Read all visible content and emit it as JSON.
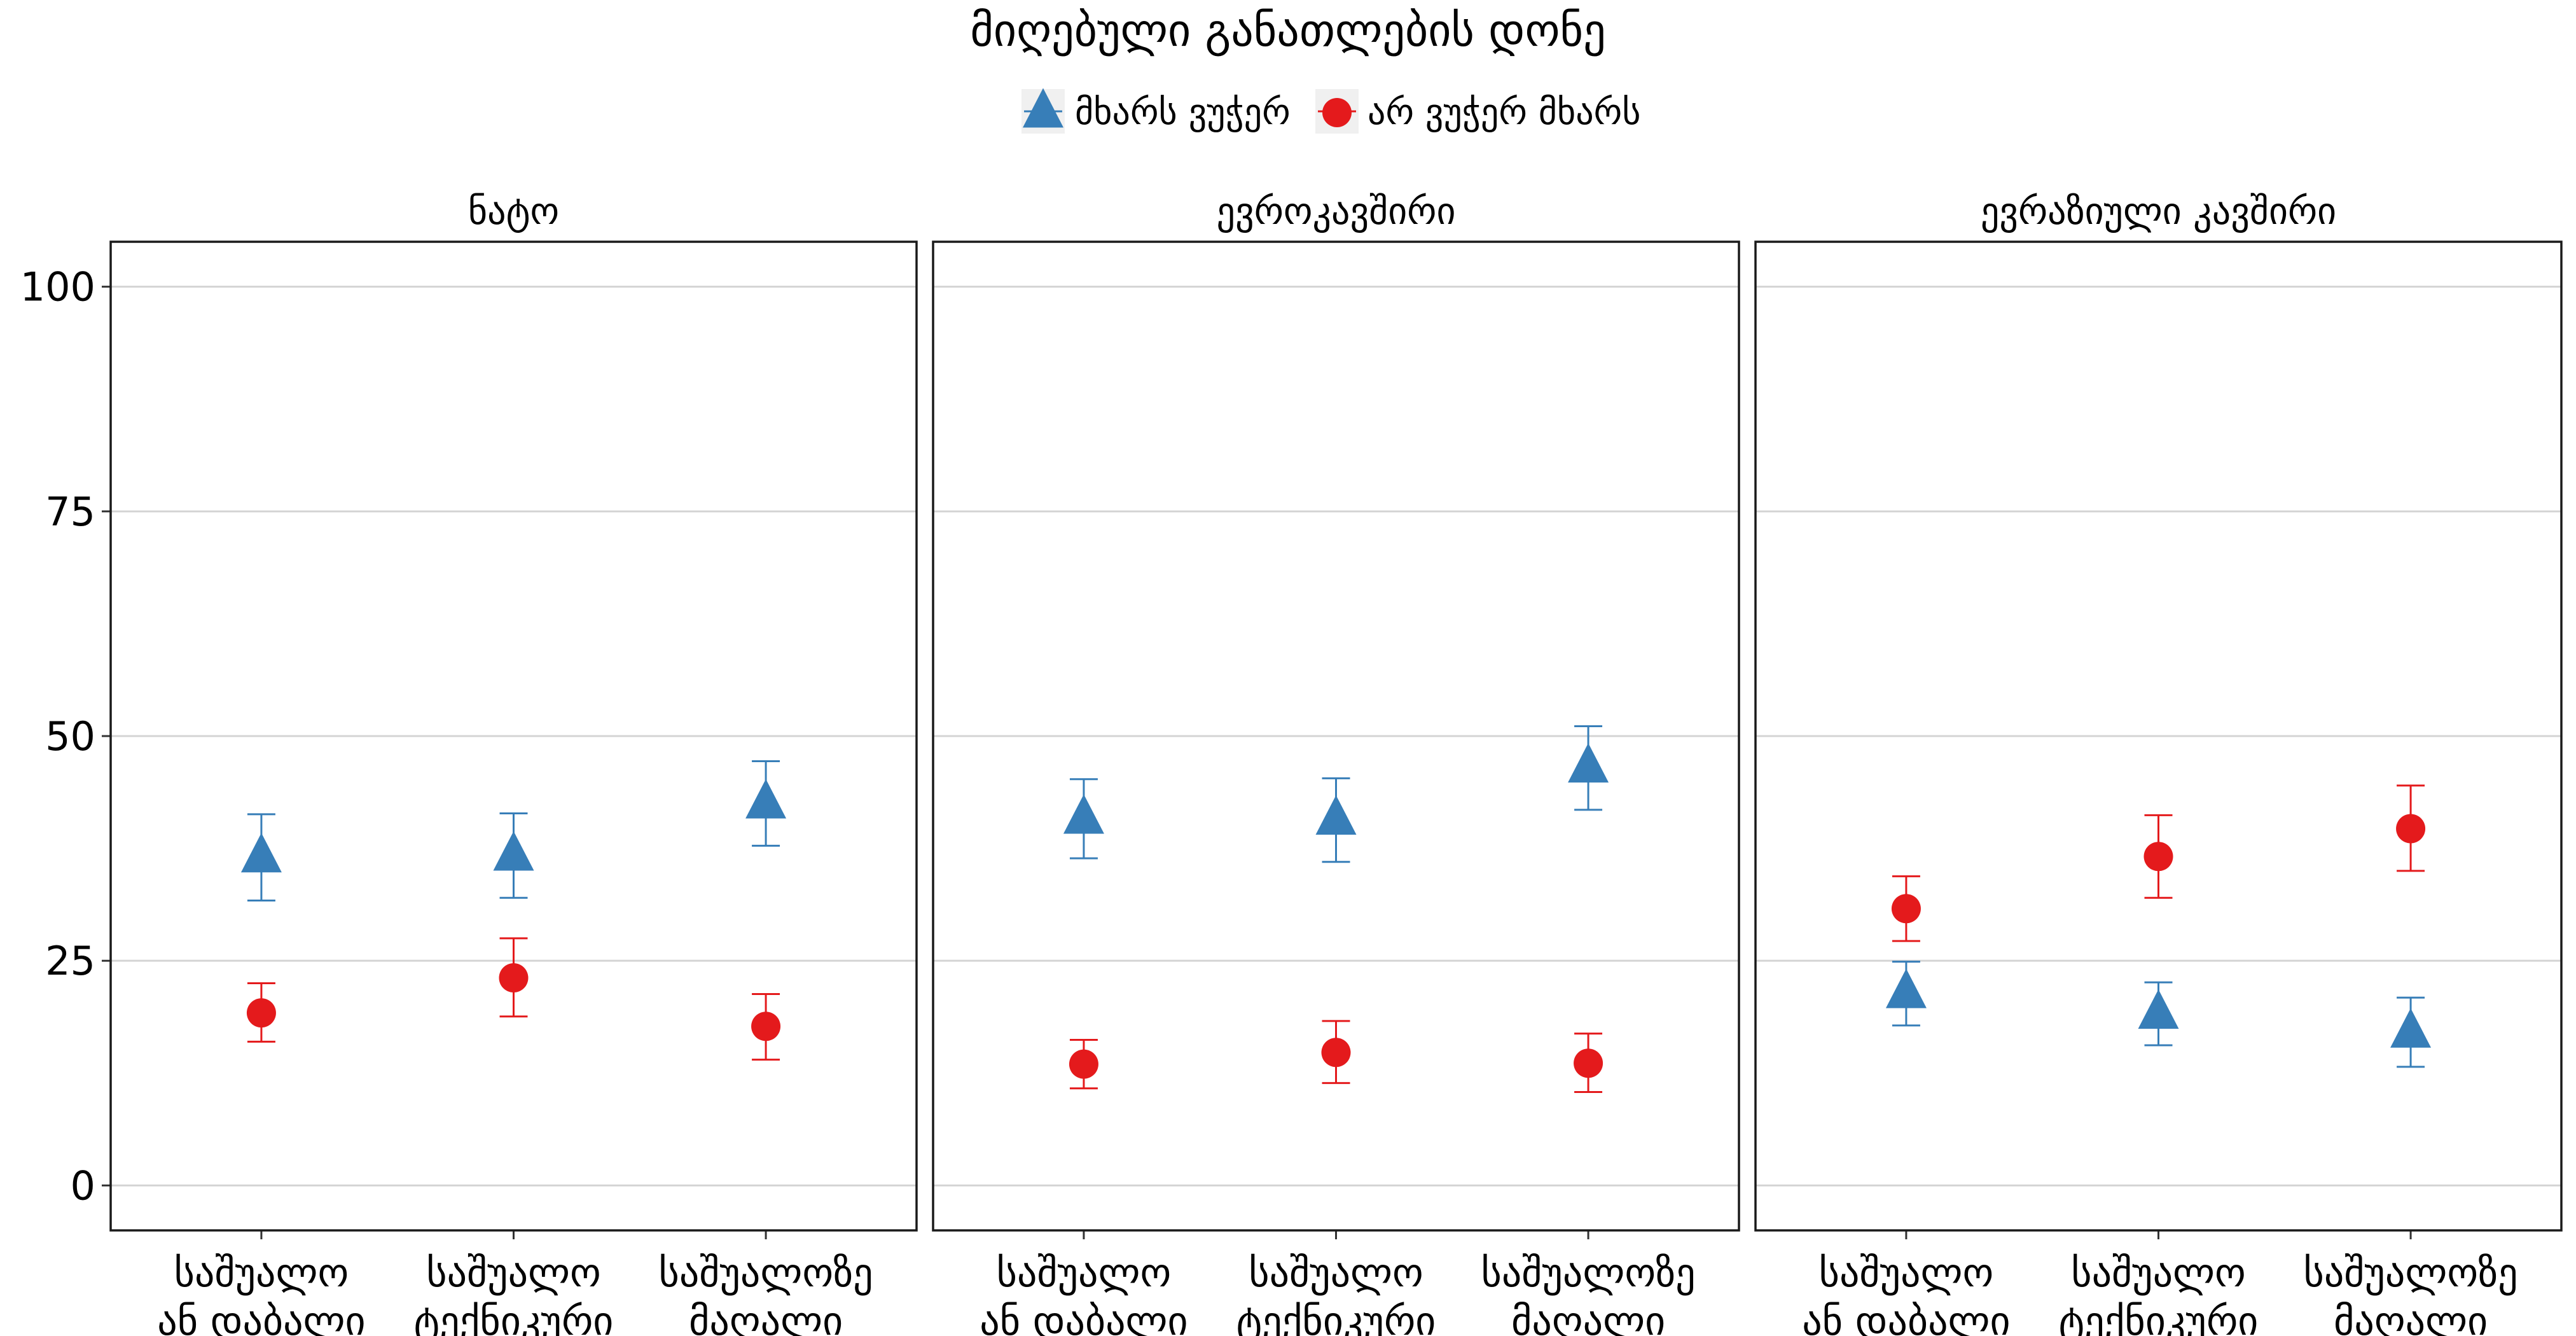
{
  "chart_data": {
    "type": "scatter",
    "title": "მიღებული განათლების დონე",
    "ylim": [
      -5,
      105
    ],
    "yticks": [
      0,
      25,
      50,
      75,
      100
    ],
    "grid": true,
    "legend_position": "top",
    "categories": [
      "საშუალო\nან დაბალი",
      "საშუალო\nტექნიკური",
      "საშუალოზე\nმაღალი"
    ],
    "series_styles": [
      {
        "name": "მხარს ვუჭერ",
        "color": "#377eb8",
        "marker": "triangle"
      },
      {
        "name": "არ ვუჭერ მხარს",
        "color": "#e41a1c",
        "marker": "circle"
      }
    ],
    "panels": [
      {
        "title": "ნატო",
        "series": [
          {
            "name": "მხარს ვუჭერ",
            "values": [
              36.5,
              36.7,
              42.5
            ],
            "lower": [
              31.7,
              32.0,
              37.8
            ],
            "upper": [
              41.3,
              41.4,
              47.2
            ]
          },
          {
            "name": "არ ვუჭერ მხარს",
            "values": [
              19.2,
              23.1,
              17.7
            ],
            "lower": [
              16.0,
              18.8,
              14.0
            ],
            "upper": [
              22.5,
              27.5,
              21.3
            ]
          }
        ]
      },
      {
        "title": "ევროკავშირი",
        "series": [
          {
            "name": "მხარს ვუჭერ",
            "values": [
              40.8,
              40.7,
              46.5
            ],
            "lower": [
              36.4,
              36.0,
              41.8
            ],
            "upper": [
              45.2,
              45.3,
              51.1
            ]
          },
          {
            "name": "არ ვუჭერ მხარს",
            "values": [
              13.5,
              14.8,
              13.6
            ],
            "lower": [
              10.8,
              11.4,
              10.4
            ],
            "upper": [
              16.2,
              18.3,
              16.9
            ]
          }
        ]
      },
      {
        "title": "ევრაზიული კავშირი",
        "series": [
          {
            "name": "მხარს ვუჭერ",
            "values": [
              21.4,
              19.1,
              17.0
            ],
            "lower": [
              17.8,
              15.6,
              13.2
            ],
            "upper": [
              24.9,
              22.6,
              20.9
            ]
          },
          {
            "name": "არ ვუჭერ მხარს",
            "values": [
              30.8,
              36.6,
              39.7
            ],
            "lower": [
              27.2,
              32.0,
              35.0
            ],
            "upper": [
              34.4,
              41.2,
              44.5
            ]
          }
        ]
      }
    ]
  }
}
